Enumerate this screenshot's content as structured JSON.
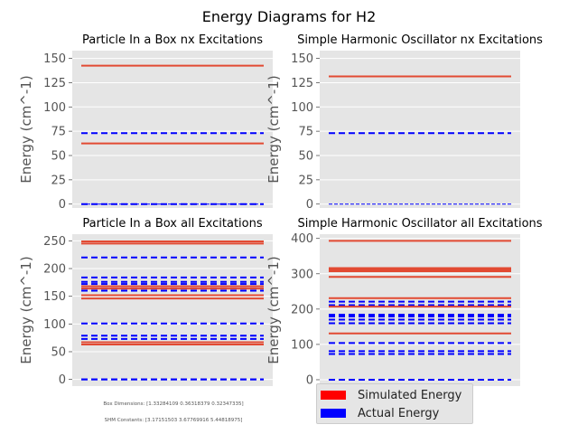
{
  "figure_title": "Energy Diagrams for H2",
  "colors": {
    "simulated": "#e24a33",
    "actual": "#0000ff",
    "panel_bg": "#e5e5e5",
    "grid": "#ffffff"
  },
  "footnote": {
    "line1": "Box Dimensions: [1.33284109 0.36318379 0.32347335]",
    "line2": "SHM Constants: [3.17151503 3.67769916 5.44818975]"
  },
  "legend": {
    "simulated_label": "Simulated Energy",
    "actual_label": "Actual Energy"
  },
  "chart_data": [
    {
      "type": "line",
      "title": "Particle In a Box nx Excitations",
      "ylabel": "Energy (cm^-1)",
      "ylim": [
        -4,
        158
      ],
      "yticks": [
        0,
        25,
        50,
        75,
        100,
        125,
        150
      ],
      "grid": true,
      "simulated": [
        62.5,
        142.5
      ],
      "actual": [
        0,
        73
      ],
      "actual_thin": [
        0
      ]
    },
    {
      "type": "line",
      "title": "Simple Harmonic Oscillator nx Excitations",
      "ylabel": "Energy (cm^-1)",
      "ylim": [
        -4,
        158
      ],
      "yticks": [
        0,
        25,
        50,
        75,
        100,
        125,
        150
      ],
      "grid": true,
      "simulated": [
        131.5
      ],
      "actual": [
        73
      ],
      "actual_thin": [
        0
      ]
    },
    {
      "type": "line",
      "title": "Particle In a Box all Excitations",
      "ylabel": "Energy (cm^-1)",
      "ylim": [
        -12,
        262
      ],
      "yticks": [
        0,
        50,
        100,
        150,
        200,
        250
      ],
      "grid": true,
      "simulated": [
        63,
        67,
        146,
        152,
        164,
        168,
        245,
        249
      ],
      "actual": [
        0,
        0,
        73,
        79,
        101,
        160,
        164,
        172,
        176,
        184,
        220
      ],
      "actual_thin": []
    },
    {
      "type": "line",
      "title": "Simple Harmonic Oscillator all Excitations",
      "ylabel": "Energy (cm^-1)",
      "ylim": [
        -18,
        412
      ],
      "yticks": [
        0,
        100,
        200,
        300,
        400
      ],
      "grid": true,
      "simulated": [
        131,
        207,
        231,
        291,
        307,
        311,
        316,
        393
      ],
      "actual": [
        0,
        0,
        73,
        81,
        104,
        160,
        170,
        179,
        184,
        211,
        221
      ],
      "actual_thin": []
    }
  ]
}
